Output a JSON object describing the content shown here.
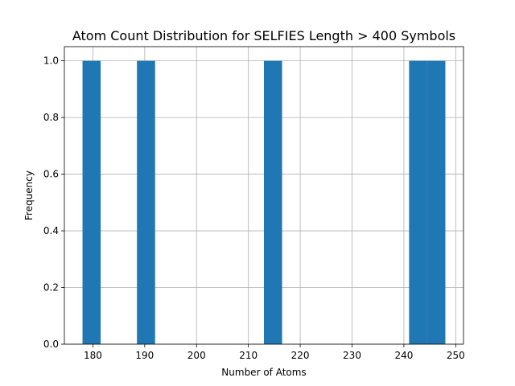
{
  "chart_data": {
    "type": "bar",
    "title": "Atom Count Distribution for SELFIES Length > 400 Symbols",
    "xlabel": "Number of Atoms",
    "ylabel": "Frequency",
    "xlim": [
      174.5,
      251.5
    ],
    "ylim": [
      0,
      1.05
    ],
    "xticks": [
      180,
      190,
      200,
      210,
      220,
      230,
      240,
      250
    ],
    "yticks": [
      0.0,
      0.2,
      0.4,
      0.6,
      0.8,
      1.0
    ],
    "xtick_labels": [
      "180",
      "190",
      "200",
      "210",
      "220",
      "230",
      "240",
      "250"
    ],
    "ytick_labels": [
      "0.0",
      "0.2",
      "0.4",
      "0.6",
      "0.8",
      "1.0"
    ],
    "grid": true,
    "bar_color": "#1f77b4",
    "bins": [
      {
        "x0": 178.0,
        "x1": 181.5,
        "count": 1
      },
      {
        "x0": 188.5,
        "x1": 192.0,
        "count": 1
      },
      {
        "x0": 213.0,
        "x1": 216.5,
        "count": 1
      },
      {
        "x0": 241.0,
        "x1": 244.5,
        "count": 1
      },
      {
        "x0": 244.5,
        "x1": 248.0,
        "count": 1
      }
    ]
  }
}
